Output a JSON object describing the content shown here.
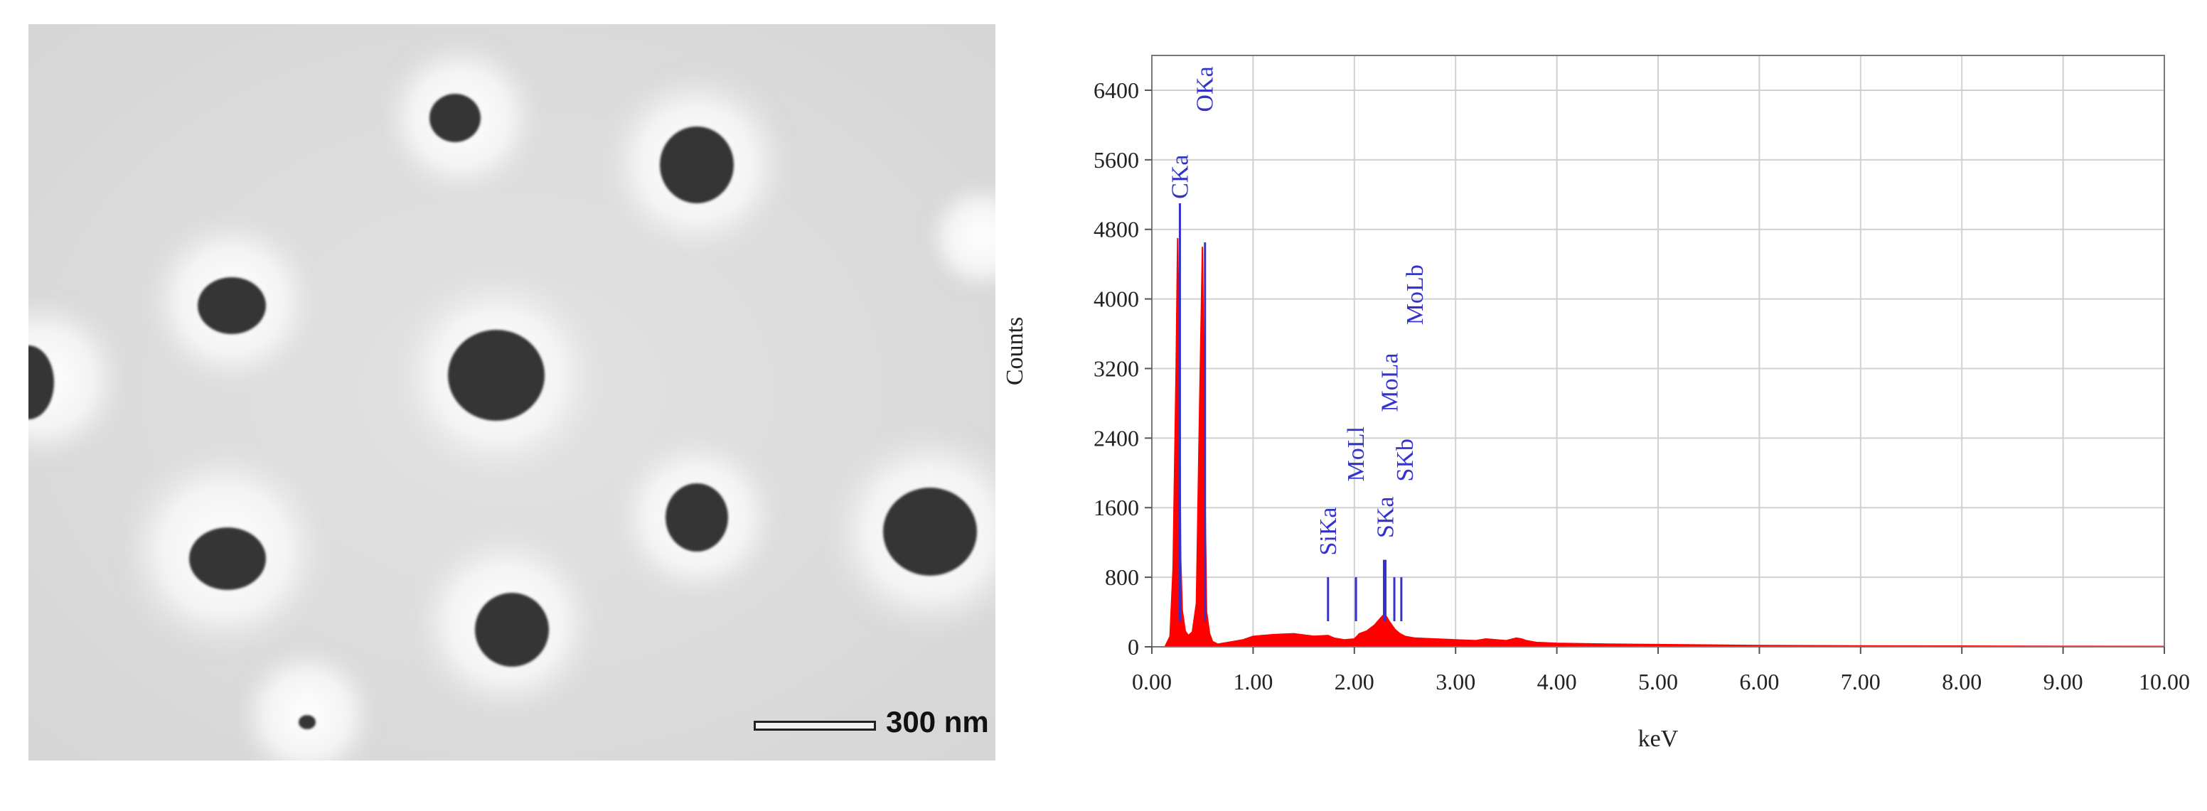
{
  "sem_image": {
    "scale_bar_label": "300 nm"
  },
  "chart_data": {
    "type": "line",
    "xlabel": "keV",
    "ylabel": "Counts",
    "xlim": [
      0.0,
      10.0
    ],
    "ylim": [
      0,
      6800
    ],
    "x_ticks": [
      0.0,
      1.0,
      2.0,
      3.0,
      4.0,
      5.0,
      6.0,
      7.0,
      8.0,
      9.0,
      10.0
    ],
    "x_tick_labels": [
      "0.00",
      "1.00",
      "2.00",
      "3.00",
      "4.00",
      "5.00",
      "6.00",
      "7.00",
      "8.00",
      "9.00",
      "10.00"
    ],
    "y_ticks": [
      0,
      800,
      1600,
      2400,
      3200,
      4000,
      4800,
      5600,
      6400
    ],
    "y_tick_labels": [
      "0",
      "800",
      "1600",
      "2400",
      "3200",
      "4000",
      "4800",
      "5600",
      "6400"
    ],
    "grid": true,
    "series_color": "#ff0000",
    "marker_color": "#3333cc",
    "label_color": "#3333cc",
    "spectrum": {
      "x": [
        0.13,
        0.18,
        0.21,
        0.24,
        0.255,
        0.27,
        0.285,
        0.3,
        0.33,
        0.36,
        0.4,
        0.44,
        0.47,
        0.5,
        0.52,
        0.54,
        0.57,
        0.6,
        0.65,
        0.7,
        0.8,
        0.9,
        1.0,
        1.2,
        1.4,
        1.6,
        1.74,
        1.8,
        1.9,
        2.0,
        2.05,
        2.12,
        2.2,
        2.26,
        2.3,
        2.34,
        2.4,
        2.45,
        2.5,
        2.6,
        2.8,
        3.0,
        3.2,
        3.3,
        3.4,
        3.5,
        3.6,
        3.65,
        3.7,
        3.8,
        4.0,
        4.5,
        5.0,
        6.0,
        7.0,
        8.0,
        9.0,
        10.0
      ],
      "y": [
        0,
        120,
        900,
        3200,
        4700,
        3400,
        1000,
        420,
        180,
        130,
        170,
        500,
        2600,
        4600,
        2200,
        400,
        150,
        60,
        30,
        40,
        60,
        80,
        120,
        140,
        150,
        120,
        130,
        100,
        80,
        90,
        150,
        180,
        250,
        330,
        380,
        300,
        200,
        150,
        120,
        100,
        90,
        80,
        70,
        90,
        80,
        70,
        100,
        90,
        70,
        50,
        40,
        30,
        25,
        15,
        10,
        8,
        5,
        4
      ]
    },
    "element_markers": [
      {
        "label": "CKa",
        "energy": 0.277,
        "count": 5100
      },
      {
        "label": "OKa",
        "energy": 0.525,
        "count": 4650
      },
      {
        "label": "SiKa",
        "energy": 1.74,
        "count": 800
      },
      {
        "label": "MoLl",
        "energy": 2.016,
        "count": 800
      },
      {
        "label": "SKa",
        "energy": 2.307,
        "count": 1000
      },
      {
        "label": "MoLa",
        "energy": 2.293,
        "count": 1000
      },
      {
        "label": "SKb",
        "energy": 2.464,
        "count": 800
      },
      {
        "label": "MoLb",
        "energy": 2.395,
        "count": 800
      }
    ],
    "marker_labels": [
      {
        "text": "CKa",
        "energy": 0.277,
        "count": 5150
      },
      {
        "text": "OKa",
        "energy": 0.525,
        "count": 6150
      },
      {
        "text": "SiKa",
        "energy": 1.74,
        "count": 1050
      },
      {
        "text": "MoLl",
        "energy": 2.016,
        "count": 1900
      },
      {
        "text": "SKa",
        "energy": 2.307,
        "count": 1250
      },
      {
        "text": "SKb",
        "energy": 2.5,
        "count": 1900
      },
      {
        "text": "MoLa",
        "energy": 2.35,
        "count": 2700
      },
      {
        "text": "MoLb",
        "energy": 2.6,
        "count": 3700
      }
    ]
  }
}
